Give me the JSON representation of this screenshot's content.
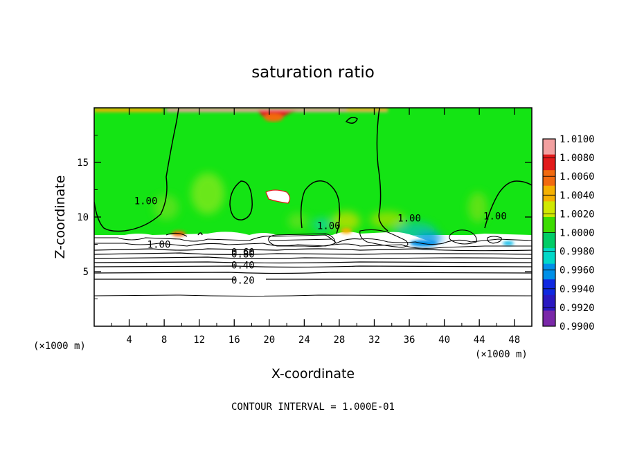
{
  "chart_data": {
    "type": "heatmap",
    "title": "saturation ratio",
    "xlabel": "X-coordinate",
    "ylabel": "Z-coordinate",
    "x_unit_left": "(×1000 m)",
    "x_unit_right": "(×1000 m)",
    "xlim": [
      0,
      50
    ],
    "ylim": [
      0,
      20
    ],
    "x_ticks": [
      4,
      8,
      12,
      16,
      20,
      24,
      28,
      32,
      36,
      40,
      44,
      48
    ],
    "y_ticks": [
      5,
      10,
      15
    ],
    "footer": "CONTOUR INTERVAL = 1.000E-01",
    "colorbar": {
      "labels": [
        "1.0100",
        "1.0080",
        "1.0060",
        "1.0040",
        "1.0020",
        "1.0000",
        "0.9980",
        "0.9960",
        "0.9940",
        "0.9920",
        "0.9900"
      ],
      "colors": [
        "#f2a0a0",
        "#e21b1b",
        "#f26a10",
        "#f5b000",
        "#d0e800",
        "#3ddc00",
        "#00cc66",
        "#00d8c8",
        "#0090e8",
        "#1028e0",
        "#2a18c0",
        "#7a28a8"
      ]
    },
    "contour_labels": [
      {
        "text": "1.00",
        "x": 5.9,
        "y": 11.5
      },
      {
        "text": "1.00",
        "x": 7.4,
        "y": 7.5
      },
      {
        "text": "1.00",
        "x": 26.8,
        "y": 9.2
      },
      {
        "text": "1.00",
        "x": 36.0,
        "y": 9.9
      },
      {
        "text": "1.00",
        "x": 45.8,
        "y": 10.1
      },
      {
        "text": "0.60",
        "x": 17.0,
        "y": 6.8
      },
      {
        "text": "0.80",
        "x": 17.0,
        "y": 6.6
      },
      {
        "text": "0.40",
        "x": 17.0,
        "y": 5.6
      },
      {
        "text": "0.20",
        "x": 17.0,
        "y": 4.2
      }
    ],
    "contour_lines_z": [
      2.9,
      4.3,
      5.5,
      5.9,
      6.2,
      6.5,
      6.8,
      7.0,
      7.2
    ]
  }
}
